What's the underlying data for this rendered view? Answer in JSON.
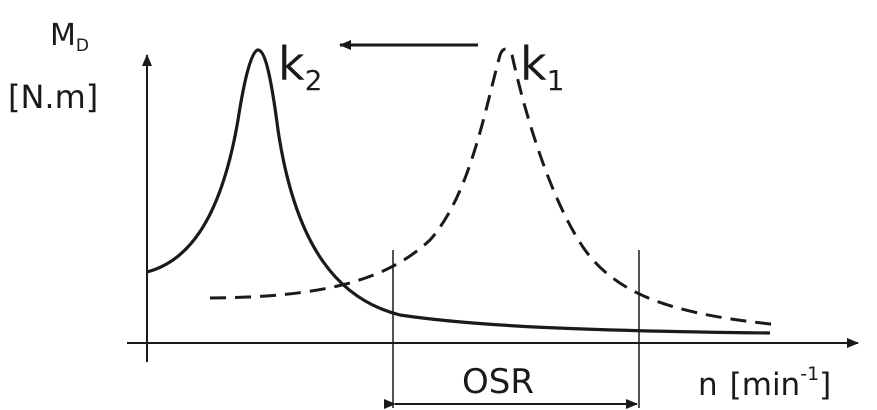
{
  "y_axis": {
    "symbol": "M",
    "subscript": "D",
    "unit": "[N.m]"
  },
  "x_axis": {
    "symbol": "n",
    "unit_open": "[min",
    "unit_exp": "-1",
    "unit_close": "]"
  },
  "curves": {
    "k2": {
      "letter": "k",
      "index": "2",
      "style": "solid"
    },
    "k1": {
      "letter": "k",
      "index": "1",
      "style": "dashed"
    }
  },
  "range": {
    "label": "OSR"
  },
  "colors": {
    "ink": "#1a1a1a",
    "background": "#ffffff"
  }
}
